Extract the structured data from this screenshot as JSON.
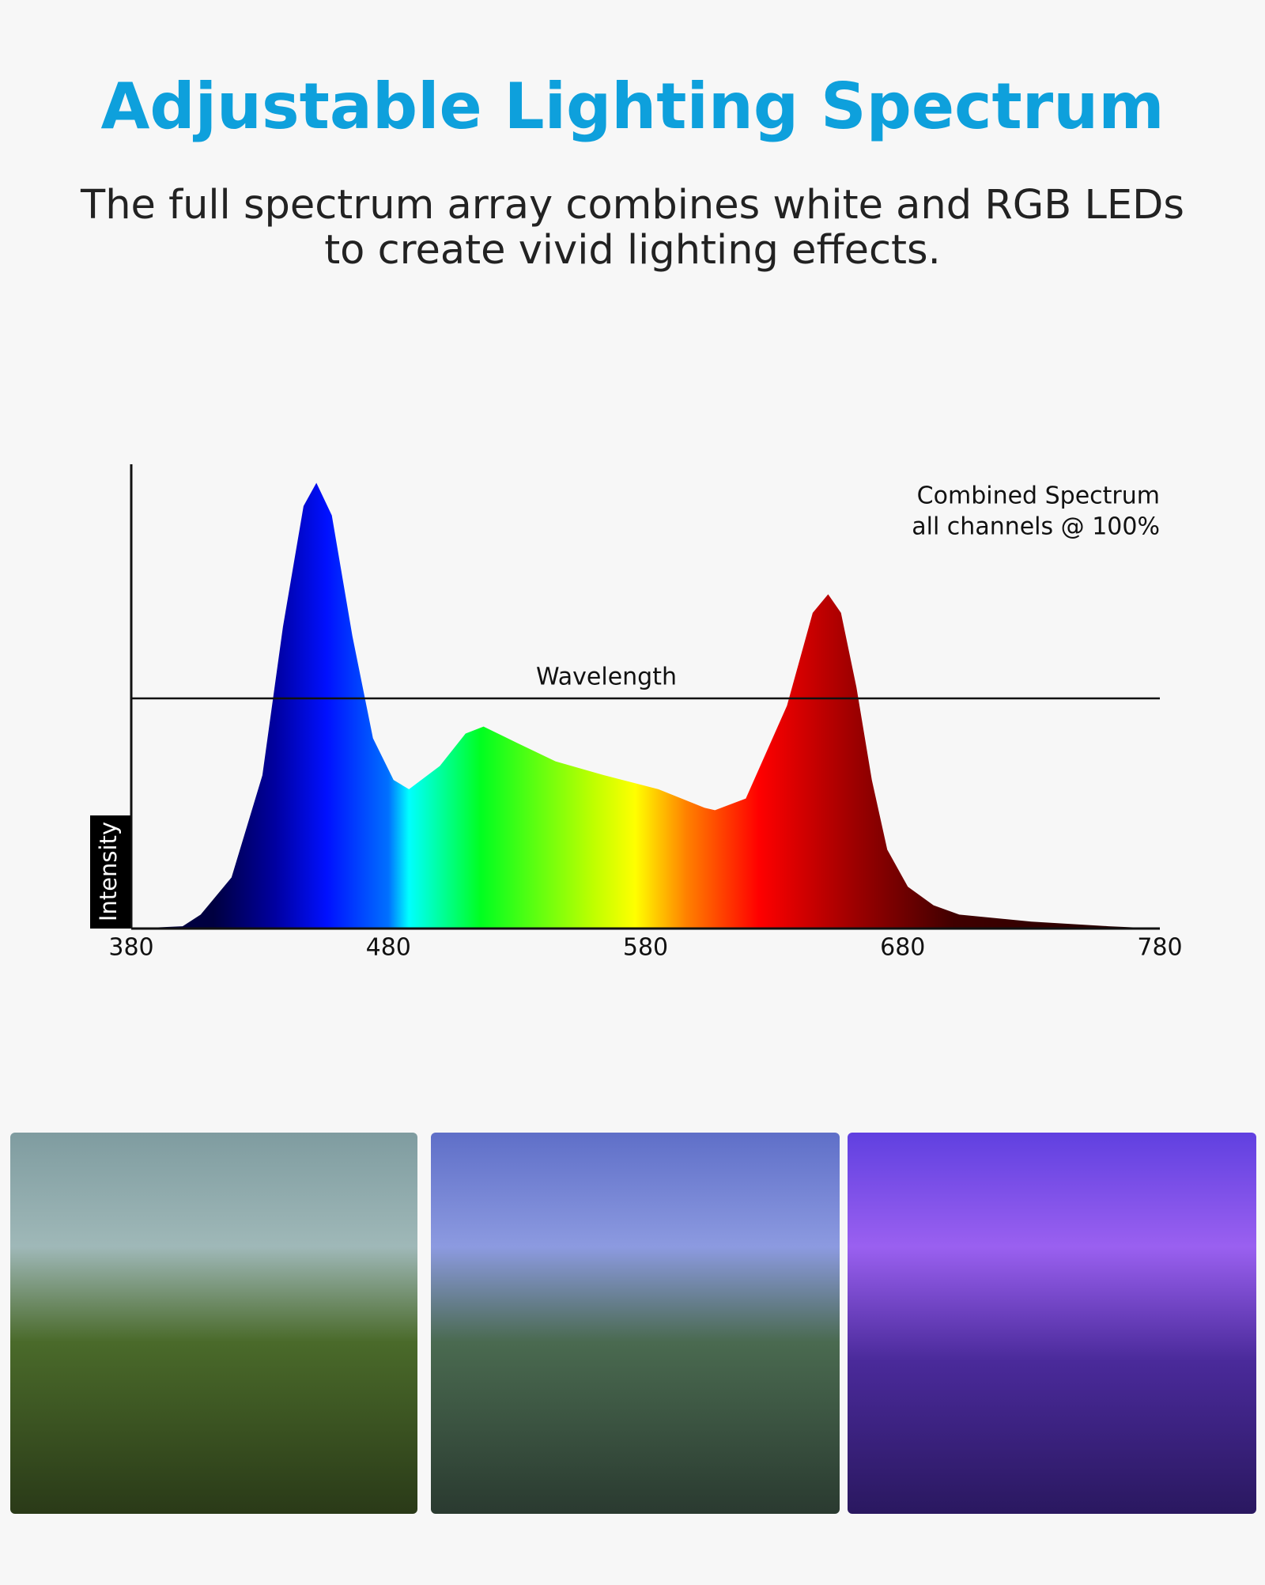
{
  "header": {
    "title": "Adjustable Lighting Spectrum",
    "subtitle": [
      "The full spectrum array combines white and RGB LEDs",
      "to create vivid lighting effects."
    ]
  },
  "chart_data": {
    "type": "area",
    "annotation": [
      "Combined Spectrum",
      "all channels @ 100%"
    ],
    "x_label": "Wavelength",
    "y_label": "Intensity",
    "x": [
      380,
      400,
      407,
      419,
      431,
      439,
      447,
      452,
      458,
      466,
      474,
      482,
      488,
      500,
      510,
      517,
      530,
      545,
      564,
      585,
      603,
      607,
      619,
      635,
      645,
      651,
      656,
      662,
      668,
      674,
      682,
      692,
      702,
      730,
      760,
      780
    ],
    "values": [
      0,
      0.5,
      3,
      11,
      33,
      65,
      91,
      96,
      89,
      63,
      41,
      32,
      30,
      35,
      42,
      43.5,
      40,
      36,
      33,
      30,
      26,
      25.5,
      28,
      48,
      68,
      72,
      68,
      52,
      32,
      17,
      9,
      5,
      3,
      1.5,
      0.5,
      0
    ],
    "xlim": [
      380,
      780
    ],
    "xticks": [
      380,
      480,
      580,
      680,
      780
    ],
    "ylim": [
      0,
      100
    ]
  }
}
